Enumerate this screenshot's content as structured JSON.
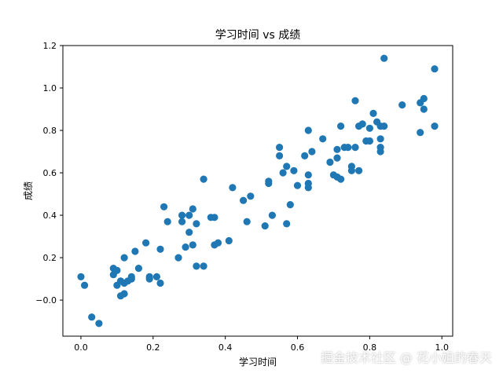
{
  "chart_data": {
    "type": "scatter",
    "title": "学习时间 vs 成绩",
    "xlabel": "学习时间",
    "ylabel": "成绩",
    "xlim": [
      -0.05,
      1.03
    ],
    "ylim": [
      -0.17,
      1.2
    ],
    "xticks": [
      "0.0",
      "0.2",
      "0.4",
      "0.6",
      "0.8",
      "1.0"
    ],
    "yticks": [
      "−0.0",
      "0.2",
      "0.4",
      "0.6",
      "0.8",
      "1.0",
      "1.2"
    ],
    "grid": false,
    "color": "#1f77b4",
    "points": [
      [
        0.0,
        0.11
      ],
      [
        0.01,
        0.07
      ],
      [
        0.03,
        -0.08
      ],
      [
        0.05,
        -0.11
      ],
      [
        0.09,
        0.12
      ],
      [
        0.09,
        0.15
      ],
      [
        0.1,
        0.14
      ],
      [
        0.1,
        0.07
      ],
      [
        0.11,
        0.02
      ],
      [
        0.11,
        0.09
      ],
      [
        0.12,
        0.03
      ],
      [
        0.12,
        0.2
      ],
      [
        0.12,
        0.08
      ],
      [
        0.13,
        0.09
      ],
      [
        0.14,
        0.1
      ],
      [
        0.14,
        0.11
      ],
      [
        0.15,
        0.23
      ],
      [
        0.16,
        0.15
      ],
      [
        0.18,
        0.27
      ],
      [
        0.19,
        0.11
      ],
      [
        0.19,
        0.1
      ],
      [
        0.21,
        0.11
      ],
      [
        0.22,
        0.08
      ],
      [
        0.22,
        0.24
      ],
      [
        0.23,
        0.44
      ],
      [
        0.24,
        0.37
      ],
      [
        0.27,
        0.2
      ],
      [
        0.28,
        0.4
      ],
      [
        0.28,
        0.37
      ],
      [
        0.29,
        0.25
      ],
      [
        0.3,
        0.32
      ],
      [
        0.3,
        0.4
      ],
      [
        0.31,
        0.26
      ],
      [
        0.31,
        0.43
      ],
      [
        0.32,
        0.36
      ],
      [
        0.32,
        0.16
      ],
      [
        0.34,
        0.57
      ],
      [
        0.34,
        0.16
      ],
      [
        0.36,
        0.39
      ],
      [
        0.37,
        0.39
      ],
      [
        0.37,
        0.26
      ],
      [
        0.38,
        0.27
      ],
      [
        0.41,
        0.28
      ],
      [
        0.42,
        0.53
      ],
      [
        0.45,
        0.47
      ],
      [
        0.46,
        0.37
      ],
      [
        0.47,
        0.49
      ],
      [
        0.51,
        0.35
      ],
      [
        0.52,
        0.55
      ],
      [
        0.52,
        0.56
      ],
      [
        0.53,
        0.4
      ],
      [
        0.55,
        0.72
      ],
      [
        0.55,
        0.68
      ],
      [
        0.56,
        0.6
      ],
      [
        0.57,
        0.63
      ],
      [
        0.57,
        0.36
      ],
      [
        0.58,
        0.45
      ],
      [
        0.59,
        0.61
      ],
      [
        0.6,
        0.54
      ],
      [
        0.62,
        0.68
      ],
      [
        0.63,
        0.8
      ],
      [
        0.63,
        0.53
      ],
      [
        0.63,
        0.55
      ],
      [
        0.63,
        0.59
      ],
      [
        0.64,
        0.7
      ],
      [
        0.67,
        0.76
      ],
      [
        0.69,
        0.65
      ],
      [
        0.7,
        0.59
      ],
      [
        0.71,
        0.67
      ],
      [
        0.71,
        0.71
      ],
      [
        0.71,
        0.58
      ],
      [
        0.72,
        0.57
      ],
      [
        0.72,
        0.82
      ],
      [
        0.73,
        0.72
      ],
      [
        0.74,
        0.72
      ],
      [
        0.75,
        0.61
      ],
      [
        0.75,
        0.63
      ],
      [
        0.76,
        0.72
      ],
      [
        0.76,
        0.94
      ],
      [
        0.77,
        0.61
      ],
      [
        0.77,
        0.82
      ],
      [
        0.78,
        0.83
      ],
      [
        0.79,
        0.75
      ],
      [
        0.8,
        0.75
      ],
      [
        0.8,
        0.81
      ],
      [
        0.81,
        0.88
      ],
      [
        0.82,
        0.84
      ],
      [
        0.83,
        0.72
      ],
      [
        0.83,
        0.76
      ],
      [
        0.83,
        0.7
      ],
      [
        0.83,
        0.82
      ],
      [
        0.84,
        1.14
      ],
      [
        0.84,
        0.82
      ],
      [
        0.89,
        0.92
      ],
      [
        0.94,
        0.93
      ],
      [
        0.94,
        0.79
      ],
      [
        0.95,
        0.9
      ],
      [
        0.95,
        0.95
      ],
      [
        0.98,
        1.09
      ],
      [
        0.98,
        0.82
      ]
    ]
  },
  "watermark": "掘金技术社区 @ 花小姐的春天"
}
